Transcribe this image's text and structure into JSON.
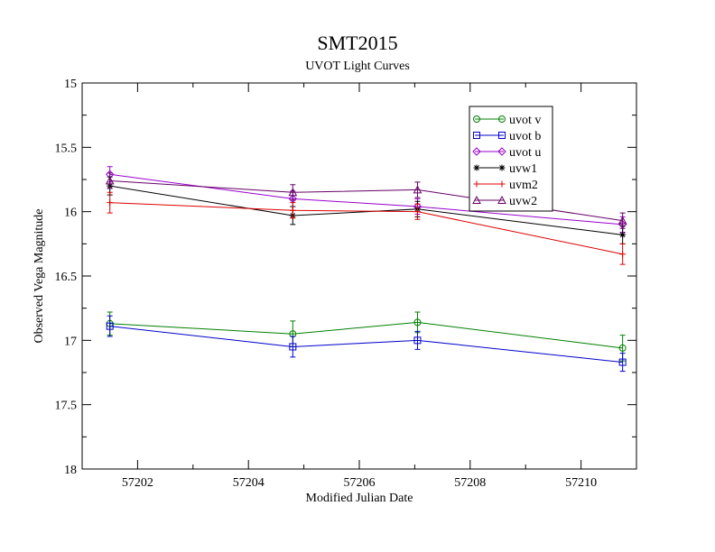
{
  "chart_data": {
    "type": "line",
    "title": "SMT2015",
    "subtitle": "UVOT Light Curves",
    "xlabel": "Modified Julian Date",
    "ylabel": "Observed Vega Magnitude",
    "xlim": [
      57201,
      57211
    ],
    "ylim": [
      15,
      18
    ],
    "y_inverted": true,
    "grid": false,
    "legend_position": "top-right",
    "xticks": [
      "57202",
      "57204",
      "57206",
      "57208",
      "57210"
    ],
    "yticks": [
      "15",
      "15.5",
      "16",
      "16.5",
      "17",
      "17.5",
      "18"
    ],
    "x": [
      57201.5,
      57204.8,
      57207.05,
      57210.75
    ],
    "series": [
      {
        "name": "uvot v",
        "color": "#008000",
        "marker": "circle",
        "y": [
          16.87,
          16.95,
          16.86,
          17.06
        ],
        "err": [
          0.09,
          0.1,
          0.08,
          0.1
        ]
      },
      {
        "name": "uvot b",
        "color": "#0000cc",
        "marker": "square",
        "y": [
          16.89,
          17.05,
          17.0,
          17.17
        ],
        "err": [
          0.08,
          0.08,
          0.07,
          0.07
        ]
      },
      {
        "name": "uvot u",
        "color": "#9900cc",
        "marker": "diamond",
        "y": [
          15.71,
          15.9,
          15.96,
          16.1
        ],
        "err": [
          0.06,
          0.06,
          0.06,
          0.06
        ]
      },
      {
        "name": "uvw1",
        "color": "#000000",
        "marker": "star",
        "y": [
          15.8,
          16.03,
          15.98,
          16.18
        ],
        "err": [
          0.07,
          0.07,
          0.06,
          0.07
        ]
      },
      {
        "name": "uvm2",
        "color": "#dd0000",
        "marker": "plus",
        "y": [
          15.93,
          15.99,
          16.0,
          16.33
        ],
        "err": [
          0.08,
          0.06,
          0.06,
          0.08
        ]
      },
      {
        "name": "uvw2",
        "color": "#660066",
        "marker": "triangle",
        "y": [
          15.76,
          15.85,
          15.83,
          16.07
        ],
        "err": [
          0.06,
          0.06,
          0.06,
          0.06
        ]
      }
    ]
  }
}
